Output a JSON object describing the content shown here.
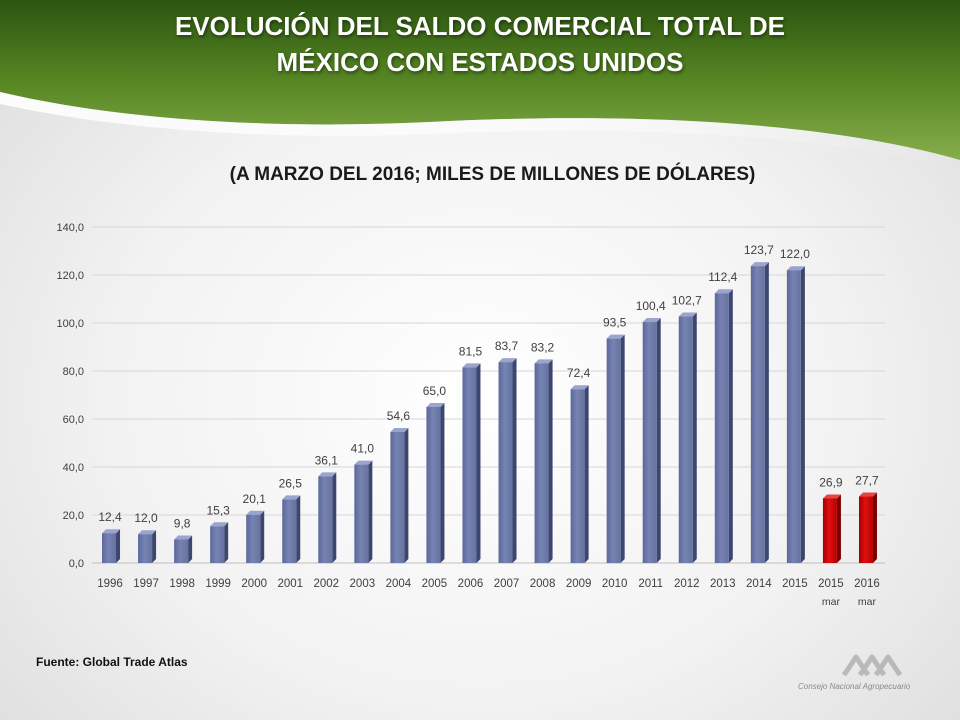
{
  "header": {
    "title_line1": "EVOLUCIÓN DEL SALDO COMERCIAL TOTAL DE",
    "title_line2": "MÉXICO CON ESTADOS UNIDOS"
  },
  "footer": {
    "source": "Fuente:  Global Trade Atlas",
    "logo_text": "Consejo Nacional Agropecuario"
  },
  "colors": {
    "header_green_dark": "#2f5a12",
    "header_green": "#5f8f2a",
    "bar_blue": "#6e7bab",
    "bar_red": "#c00000"
  },
  "chart_data": {
    "type": "bar",
    "title": "",
    "subtitle": "(A MARZO DEL 2016; MILES DE MILLONES DE DÓLARES)",
    "xlabel": "",
    "ylabel": "",
    "ylim": [
      0,
      140
    ],
    "yticks": [
      "0,0",
      "20,0",
      "40,0",
      "60,0",
      "80,0",
      "100,0",
      "120,0",
      "140,0"
    ],
    "grid": true,
    "legend": "none",
    "categories": [
      "1996",
      "1997",
      "1998",
      "1999",
      "2000",
      "2001",
      "2002",
      "2003",
      "2004",
      "2005",
      "2006",
      "2007",
      "2008",
      "2009",
      "2010",
      "2011",
      "2012",
      "2013",
      "2014",
      "2015",
      "2015",
      "2016"
    ],
    "category_sublabels": [
      "",
      "",
      "",
      "",
      "",
      "",
      "",
      "",
      "",
      "",
      "",
      "",
      "",
      "",
      "",
      "",
      "",
      "",
      "",
      "",
      "mar",
      "mar"
    ],
    "values": [
      12.4,
      12.0,
      9.8,
      15.3,
      20.1,
      26.5,
      36.1,
      41.0,
      54.6,
      65.0,
      81.5,
      83.7,
      83.2,
      72.4,
      93.5,
      100.4,
      102.7,
      112.4,
      123.7,
      122.0,
      26.9,
      27.7
    ],
    "data_labels": [
      "12,4",
      "12,0",
      "9,8",
      "15,3",
      "20,1",
      "26,5",
      "36,1",
      "41,0",
      "54,6",
      "65,0",
      "81,5",
      "83,7",
      "83,2",
      "72,4",
      "93,5",
      "100,4",
      "102,7",
      "112,4",
      "123,7",
      "122,0",
      "26,9",
      "27,7"
    ],
    "bar_colors": [
      "blue",
      "blue",
      "blue",
      "blue",
      "blue",
      "blue",
      "blue",
      "blue",
      "blue",
      "blue",
      "blue",
      "blue",
      "blue",
      "blue",
      "blue",
      "blue",
      "blue",
      "blue",
      "blue",
      "blue",
      "red",
      "red"
    ]
  }
}
